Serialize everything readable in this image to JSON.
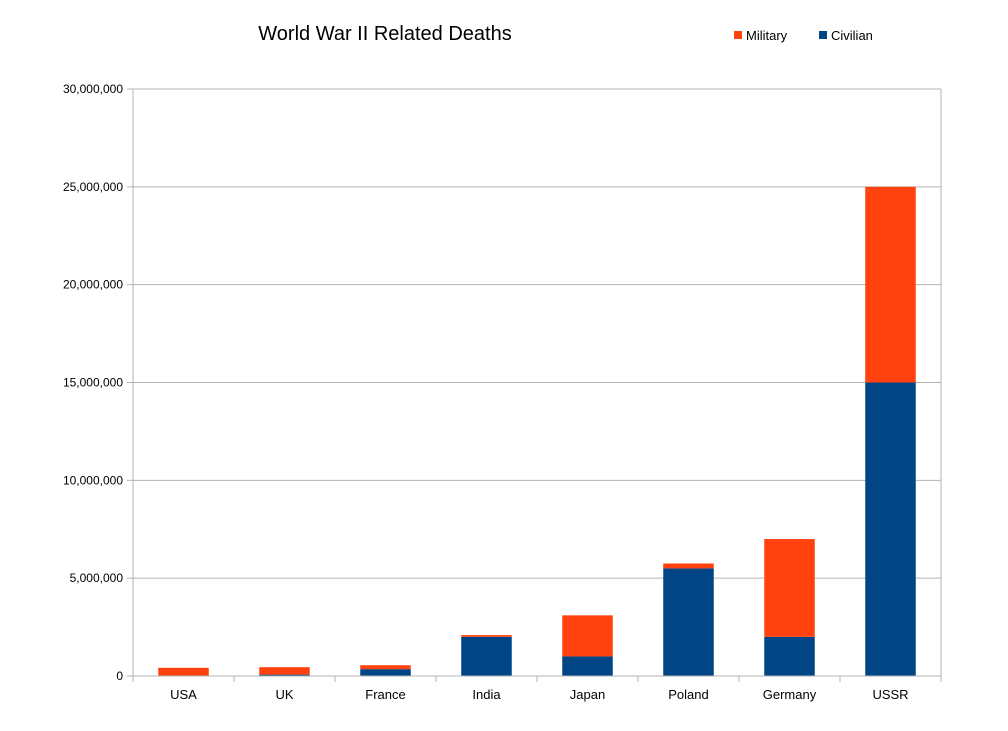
{
  "chart_data": {
    "type": "bar",
    "stacked": true,
    "title": "World War II Related Deaths",
    "xlabel": "",
    "ylabel": "",
    "categories": [
      "USA",
      "UK",
      "France",
      "India",
      "Japan",
      "Poland",
      "Germany",
      "USSR"
    ],
    "series": [
      {
        "name": "Civilian",
        "color": "#004586",
        "values": [
          10000,
          70000,
          350000,
          2000000,
          1000000,
          5500000,
          2000000,
          15000000
        ]
      },
      {
        "name": "Military",
        "color": "#ff420e",
        "values": [
          410000,
          380000,
          200000,
          90000,
          2100000,
          250000,
          5000000,
          10000000
        ]
      }
    ],
    "legend_order": [
      "Military",
      "Civilian"
    ],
    "ylim": [
      0,
      30000000
    ],
    "yticks": [
      "0",
      "5,000,000",
      "10,000,000",
      "15,000,000",
      "20,000,000",
      "25,000,000",
      "30,000,000"
    ],
    "ytick_values": [
      0,
      5000000,
      10000000,
      15000000,
      20000000,
      25000000,
      30000000
    ],
    "grid": true,
    "legend_position": "top-right",
    "colors": {
      "grid": "#b3b3b3",
      "axis": "#b3b3b3",
      "text": "#000000"
    }
  }
}
